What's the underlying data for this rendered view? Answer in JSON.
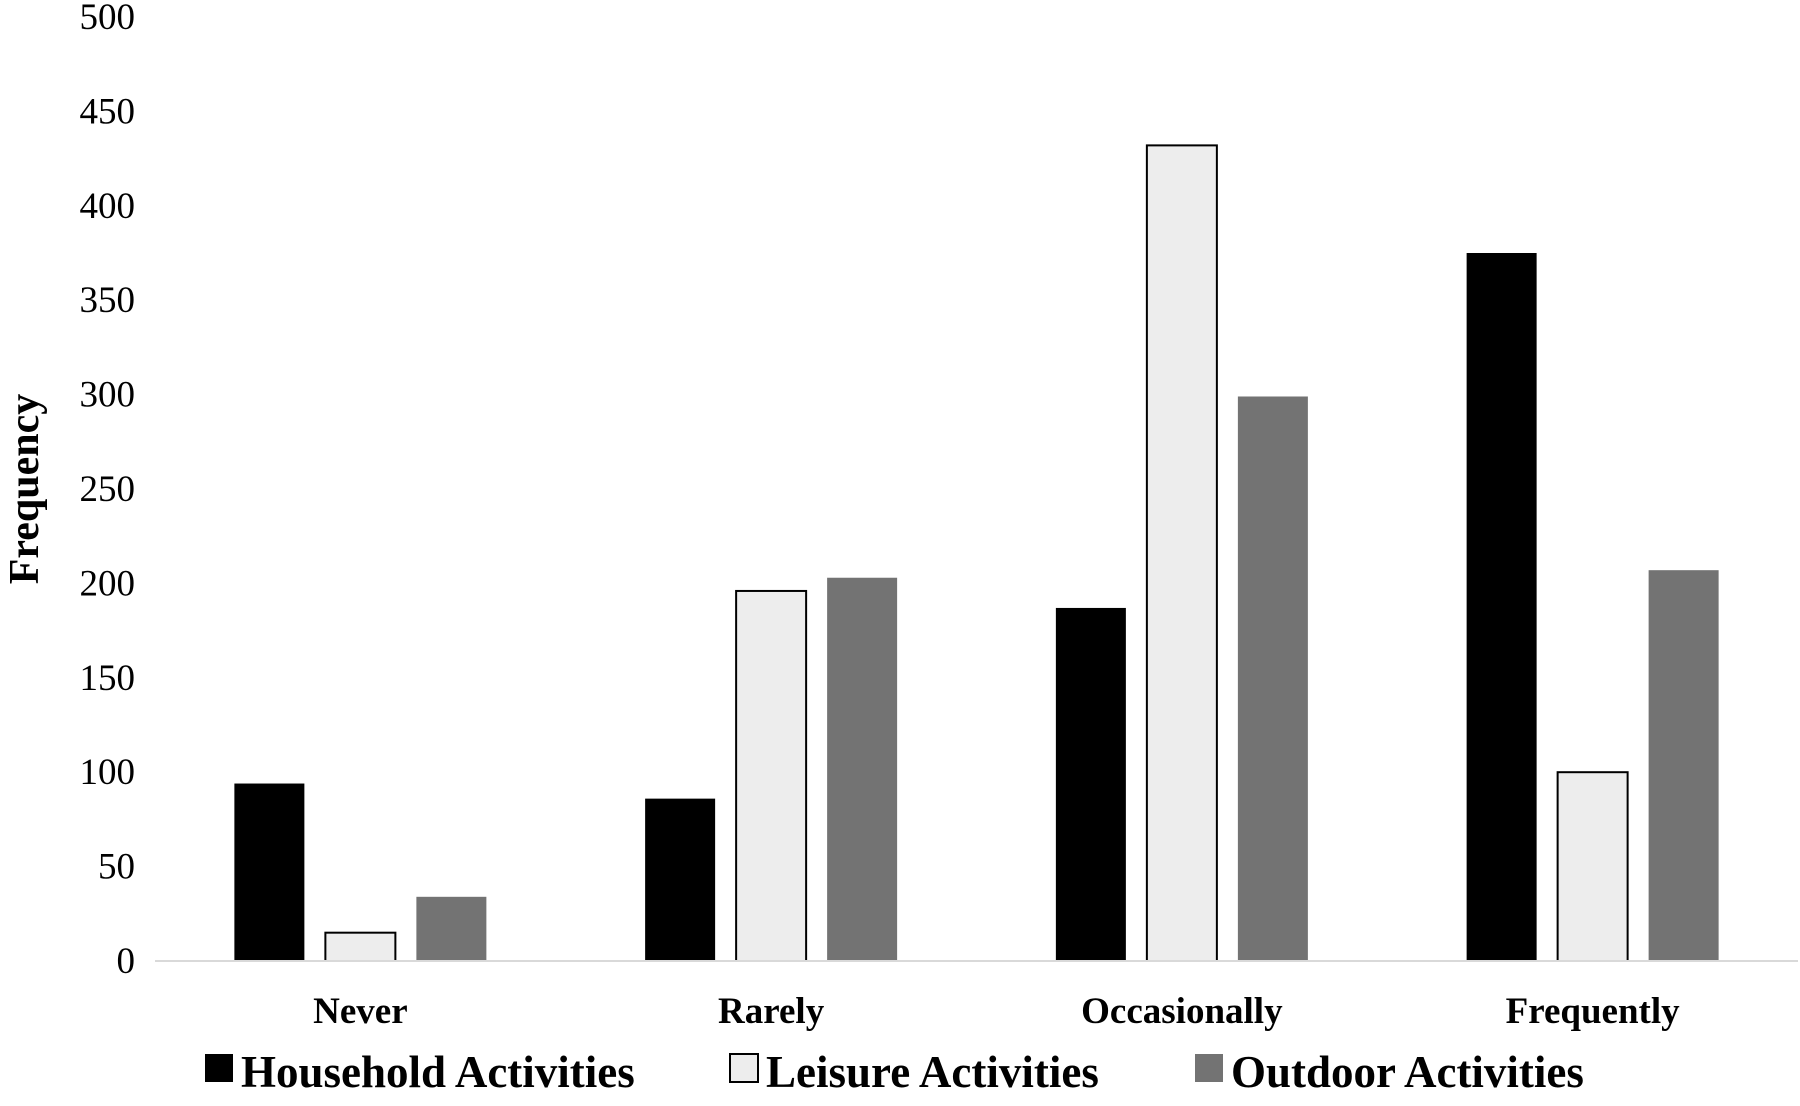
{
  "chart_data": {
    "type": "bar",
    "title": "",
    "xlabel": "",
    "ylabel": "Frequency",
    "ylim": [
      0,
      500
    ],
    "yticks": [
      0,
      50,
      100,
      150,
      200,
      250,
      300,
      350,
      400,
      450,
      500
    ],
    "grid": false,
    "legend_position": "bottom",
    "categories": [
      "Never",
      "Rarely",
      "Occasionally",
      "Frequently"
    ],
    "series": [
      {
        "name": "Household Activities",
        "color": "#000000",
        "values": [
          94,
          86,
          187,
          375
        ]
      },
      {
        "name": "Leisure Activities",
        "color": "#ededed",
        "values": [
          15,
          196,
          432,
          100
        ]
      },
      {
        "name": "Outdoor Activities",
        "color": "#737373",
        "values": [
          34,
          203,
          299,
          207
        ]
      }
    ]
  }
}
